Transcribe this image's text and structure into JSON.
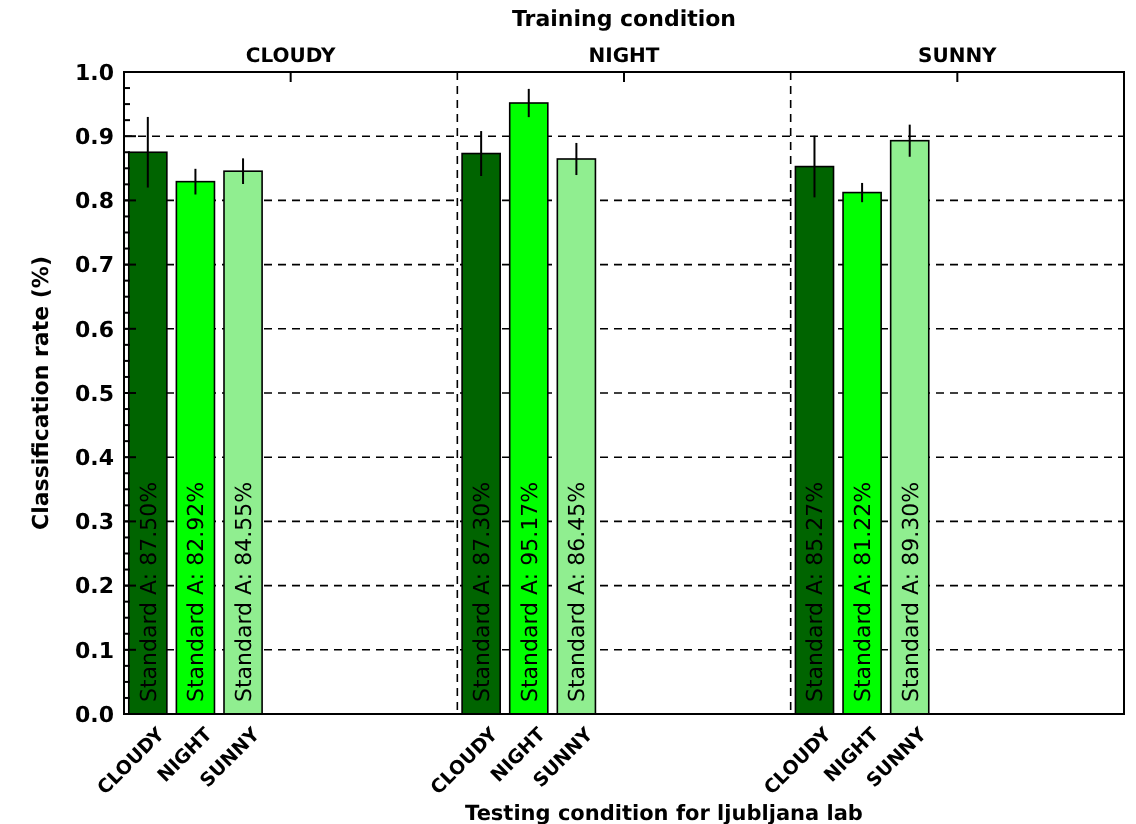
{
  "chart_data": {
    "type": "bar",
    "xlabel": "Testing condition for ljubljana lab",
    "ylabel": "Classification rate (%)",
    "x2label": "Training condition",
    "categories": [
      "CLOUDY",
      "NIGHT",
      "SUNNY",
      null,
      null,
      null,
      null,
      "CLOUDY",
      "NIGHT",
      "SUNNY",
      null,
      null,
      null,
      null,
      "CLOUDY",
      "NIGHT",
      "SUNNY",
      null,
      null,
      null,
      null
    ],
    "values": [
      0.875,
      0.8292,
      0.8455,
      null,
      null,
      null,
      null,
      0.873,
      0.9517,
      0.8645,
      null,
      null,
      null,
      null,
      0.8527,
      0.8122,
      0.893,
      null,
      null,
      null,
      null
    ],
    "colors": [
      "#006400",
      "#00ff00",
      "#90ee90",
      null,
      null,
      null,
      null,
      "#006400",
      "#00ff00",
      "#90ee90",
      null,
      null,
      null,
      null,
      "#006400",
      "#00ff00",
      "#90ee90",
      null,
      null,
      null,
      null
    ],
    "errors": [
      0.055,
      0.02,
      0.02,
      null,
      null,
      null,
      null,
      0.035,
      0.022,
      0.025,
      null,
      null,
      null,
      null,
      0.048,
      0.015,
      0.025,
      null,
      null,
      null,
      null
    ],
    "value_labels": [
      "Standard A: 87.50%",
      "Standard A: 82.92%",
      "Standard A: 84.55%",
      null,
      null,
      null,
      null,
      "Standard A: 87.30%",
      "Standard A: 95.17%",
      "Standard A: 86.45%",
      null,
      null,
      null,
      null,
      "Standard A: 85.27%",
      "Standard A: 81.22%",
      "Standard A: 89.30%",
      null,
      null,
      null,
      null
    ],
    "ylim": [
      0,
      1
    ],
    "yticks": [
      {
        "value": 0,
        "label": "0.0"
      },
      {
        "value": 0.025,
        "label": null
      },
      {
        "value": 0.05,
        "label": null
      },
      {
        "value": 0.075,
        "label": null
      },
      {
        "value": 0.1,
        "label": "0.1"
      },
      {
        "value": 0.125,
        "label": null
      },
      {
        "value": 0.15,
        "label": null
      },
      {
        "value": 0.175,
        "label": null
      },
      {
        "value": 0.2,
        "label": "0.2"
      },
      {
        "value": 0.225,
        "label": null
      },
      {
        "value": 0.25,
        "label": null
      },
      {
        "value": 0.275,
        "label": null
      },
      {
        "value": 0.3,
        "label": "0.3"
      },
      {
        "value": 0.325,
        "label": null
      },
      {
        "value": 0.35,
        "label": null
      },
      {
        "value": 0.375,
        "label": null
      },
      {
        "value": 0.4,
        "label": "0.4"
      },
      {
        "value": 0.425,
        "label": null
      },
      {
        "value": 0.45,
        "label": null
      },
      {
        "value": 0.475,
        "label": null
      },
      {
        "value": 0.5,
        "label": "0.5"
      },
      {
        "value": 0.525,
        "label": null
      },
      {
        "value": 0.55,
        "label": null
      },
      {
        "value": 0.575,
        "label": null
      },
      {
        "value": 0.6,
        "label": "0.6"
      },
      {
        "value": 0.625,
        "label": null
      },
      {
        "value": 0.65,
        "label": null
      },
      {
        "value": 0.675,
        "label": null
      },
      {
        "value": 0.7,
        "label": "0.7"
      },
      {
        "value": 0.725,
        "label": null
      },
      {
        "value": 0.75,
        "label": null
      },
      {
        "value": 0.775,
        "label": null
      },
      {
        "value": 0.8,
        "label": "0.8"
      },
      {
        "value": 0.825,
        "label": null
      },
      {
        "value": 0.85,
        "label": null
      },
      {
        "value": 0.875,
        "label": null
      },
      {
        "value": 0.9,
        "label": "0.9"
      },
      {
        "value": 0.925,
        "label": null
      },
      {
        "value": 0.95,
        "label": null
      },
      {
        "value": 0.975,
        "label": null
      },
      {
        "value": 1,
        "label": "1.0"
      }
    ],
    "annotations": [
      "CLOUDY",
      "NIGHT",
      "SUNNY"
    ],
    "grid": "y"
  }
}
